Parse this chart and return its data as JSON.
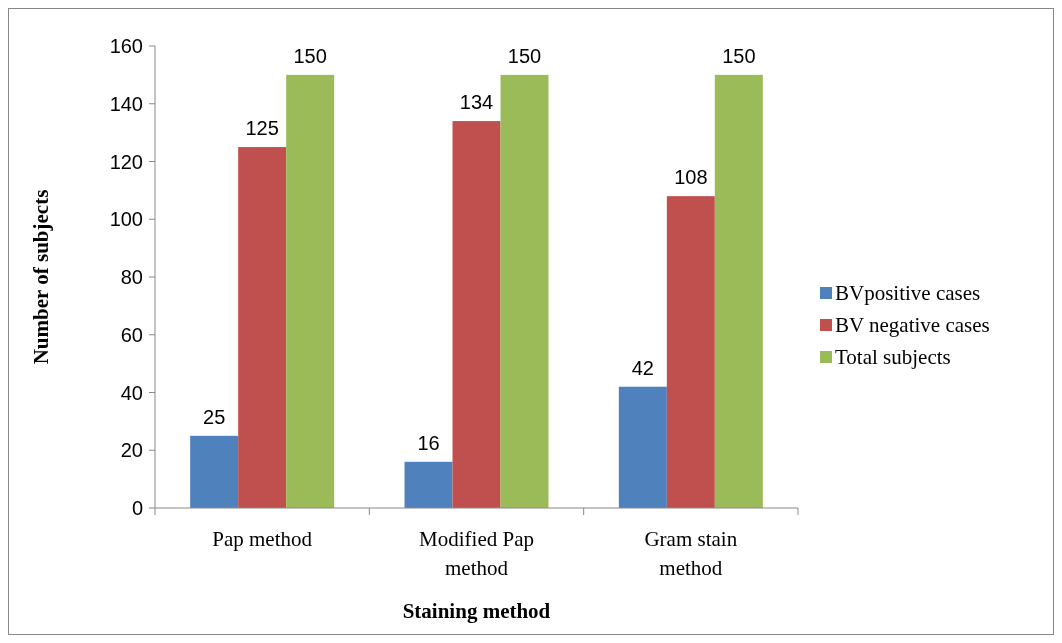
{
  "chart_data": {
    "type": "bar",
    "xlabel": "Staining method",
    "ylabel": "Number of subjects",
    "categories": [
      "Pap method",
      "Modified Pap method",
      "Gram stain method"
    ],
    "series": [
      {
        "name": "BVpositive cases",
        "color": "#4f81bd",
        "values": [
          25,
          16,
          42
        ]
      },
      {
        "name": "BV negative cases",
        "color": "#c0504d",
        "values": [
          125,
          134,
          108
        ]
      },
      {
        "name": "Total subjects",
        "color": "#9bbb59",
        "values": [
          150,
          150,
          150
        ]
      }
    ],
    "ylim": [
      0,
      160
    ],
    "yticks": [
      0,
      20,
      40,
      60,
      80,
      100,
      120,
      140,
      160
    ],
    "data_labels": true,
    "legend": "right",
    "grid": false
  }
}
